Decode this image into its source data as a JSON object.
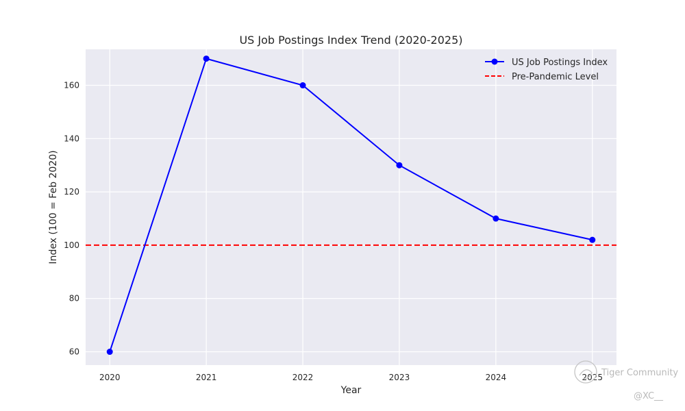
{
  "chart_data": {
    "type": "line",
    "title": "US Job Postings Index Trend (2020-2025)",
    "xlabel": "Year",
    "ylabel": "Index (100 = Feb 2020)",
    "x": [
      2020,
      2021,
      2022,
      2023,
      2024,
      2025
    ],
    "x_ticks": [
      "2020",
      "2021",
      "2022",
      "2023",
      "2024",
      "2025"
    ],
    "y_ticks": [
      60,
      80,
      100,
      120,
      140,
      160
    ],
    "xlim": [
      2019.75,
      2025.25
    ],
    "ylim": [
      55,
      173.5
    ],
    "grid": true,
    "legend_position": "top-right",
    "series": [
      {
        "name": "US Job Postings Index",
        "values": [
          60,
          170,
          160,
          130,
          110,
          102
        ],
        "color": "#0000ff",
        "marker": "circle",
        "line_style": "solid"
      }
    ],
    "reference_lines": [
      {
        "name": "Pre-Pandemic Level",
        "y": 100,
        "color": "#ff0000",
        "line_style": "dashed"
      }
    ],
    "colors": {
      "plot_background": "#eaeaf2",
      "grid": "#ffffff"
    }
  },
  "watermark": {
    "brand": "Tiger Community",
    "handle": "@XC__"
  }
}
